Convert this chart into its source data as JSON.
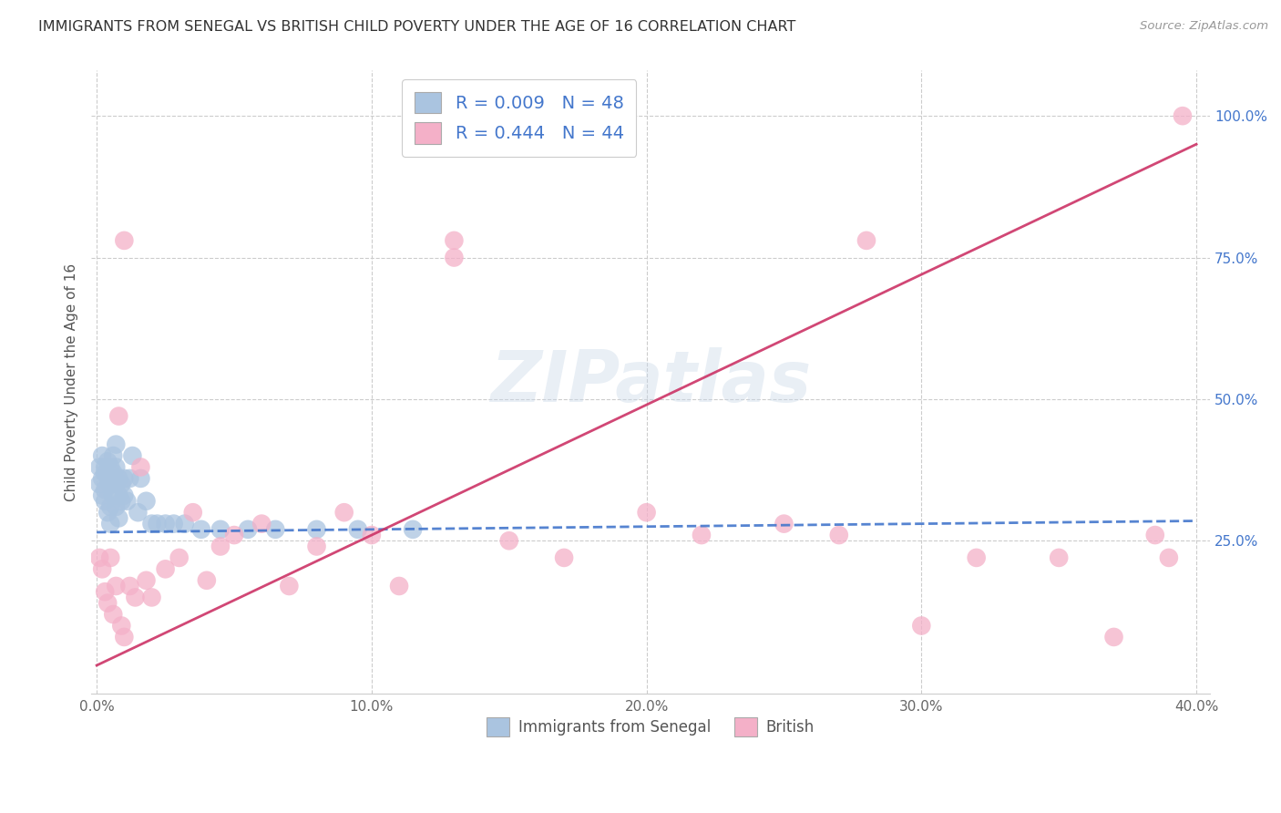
{
  "title": "IMMIGRANTS FROM SENEGAL VS BRITISH CHILD POVERTY UNDER THE AGE OF 16 CORRELATION CHART",
  "source": "Source: ZipAtlas.com",
  "ylabel": "Child Poverty Under the Age of 16",
  "watermark": "ZIPatlas",
  "xlim": [
    -0.002,
    0.405
  ],
  "ylim": [
    -0.02,
    1.08
  ],
  "xticks": [
    0.0,
    0.1,
    0.2,
    0.3,
    0.4
  ],
  "yticks": [
    0.25,
    0.5,
    0.75,
    1.0
  ],
  "ytick_labels": [
    "25.0%",
    "50.0%",
    "75.0%",
    "100.0%"
  ],
  "xtick_labels": [
    "0.0%",
    "10.0%",
    "20.0%",
    "30.0%",
    "40.0%"
  ],
  "blue_R": 0.009,
  "blue_N": 48,
  "pink_R": 0.444,
  "pink_N": 44,
  "blue_color": "#aac4e0",
  "pink_color": "#f4b0c8",
  "blue_edge_color": "#5588cc",
  "pink_edge_color": "#d04070",
  "blue_line_color": "#4477cc",
  "pink_line_color": "#cc3366",
  "title_fontsize": 11.5,
  "axis_label_fontsize": 11,
  "tick_fontsize": 11,
  "blue_scatter_x": [
    0.001,
    0.001,
    0.002,
    0.002,
    0.002,
    0.003,
    0.003,
    0.003,
    0.003,
    0.004,
    0.004,
    0.004,
    0.005,
    0.005,
    0.005,
    0.005,
    0.006,
    0.006,
    0.006,
    0.007,
    0.007,
    0.007,
    0.007,
    0.008,
    0.008,
    0.008,
    0.009,
    0.009,
    0.01,
    0.01,
    0.011,
    0.012,
    0.013,
    0.015,
    0.016,
    0.018,
    0.02,
    0.022,
    0.025,
    0.028,
    0.032,
    0.038,
    0.045,
    0.055,
    0.065,
    0.08,
    0.095,
    0.115
  ],
  "blue_scatter_y": [
    0.38,
    0.35,
    0.4,
    0.36,
    0.33,
    0.37,
    0.34,
    0.38,
    0.32,
    0.36,
    0.39,
    0.3,
    0.38,
    0.35,
    0.31,
    0.28,
    0.4,
    0.37,
    0.33,
    0.42,
    0.38,
    0.35,
    0.31,
    0.36,
    0.33,
    0.29,
    0.35,
    0.32,
    0.36,
    0.33,
    0.32,
    0.36,
    0.4,
    0.3,
    0.36,
    0.32,
    0.28,
    0.28,
    0.28,
    0.28,
    0.28,
    0.27,
    0.27,
    0.27,
    0.27,
    0.27,
    0.27,
    0.27
  ],
  "pink_scatter_x": [
    0.001,
    0.002,
    0.003,
    0.004,
    0.005,
    0.006,
    0.007,
    0.008,
    0.009,
    0.01,
    0.012,
    0.014,
    0.016,
    0.018,
    0.02,
    0.025,
    0.03,
    0.035,
    0.04,
    0.045,
    0.05,
    0.06,
    0.07,
    0.08,
    0.09,
    0.1,
    0.11,
    0.13,
    0.15,
    0.17,
    0.2,
    0.22,
    0.25,
    0.27,
    0.3,
    0.32,
    0.35,
    0.37,
    0.385,
    0.39,
    0.01,
    0.13,
    0.28,
    0.395
  ],
  "pink_scatter_y": [
    0.22,
    0.2,
    0.16,
    0.14,
    0.22,
    0.12,
    0.17,
    0.47,
    0.1,
    0.08,
    0.17,
    0.15,
    0.38,
    0.18,
    0.15,
    0.2,
    0.22,
    0.3,
    0.18,
    0.24,
    0.26,
    0.28,
    0.17,
    0.24,
    0.3,
    0.26,
    0.17,
    0.78,
    0.25,
    0.22,
    0.3,
    0.26,
    0.28,
    0.26,
    0.1,
    0.22,
    0.22,
    0.08,
    0.26,
    0.22,
    0.78,
    0.75,
    0.78,
    1.0
  ],
  "pink_line_slope": 2.3,
  "pink_line_intercept": 0.03,
  "blue_line_slope": 0.05,
  "blue_line_intercept": 0.265
}
